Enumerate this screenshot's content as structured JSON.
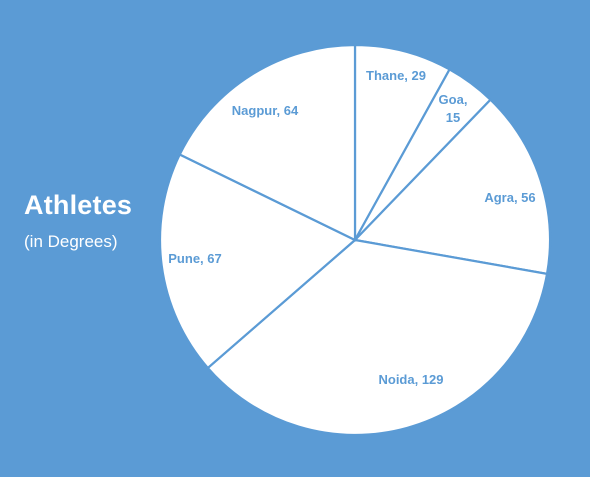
{
  "chart_data": {
    "type": "pie",
    "title": "Athletes",
    "subtitle": "(in Degrees)",
    "unit": "degrees",
    "slices": [
      {
        "label": "Thane",
        "value": 29,
        "text": "Thane, 29"
      },
      {
        "label": "Goa",
        "value": 15,
        "text": [
          "Goa,",
          "15"
        ]
      },
      {
        "label": "Agra",
        "value": 56,
        "text": "Agra, 56"
      },
      {
        "label": "Noida",
        "value": 129,
        "text": "Noida, 129"
      },
      {
        "label": "Pune",
        "value": 67,
        "text": "Pune, 67"
      },
      {
        "label": "Nagpur",
        "value": 64,
        "text": "Nagpur, 64"
      }
    ],
    "start_angle": "12 o'clock",
    "direction": "clockwise",
    "legend": "none",
    "colors": {
      "background": "#5b9bd5",
      "slice_fill": "#ffffff",
      "slice_stroke": "#5b9bd5",
      "label": "#5b9bd5",
      "title": "#ffffff"
    }
  }
}
